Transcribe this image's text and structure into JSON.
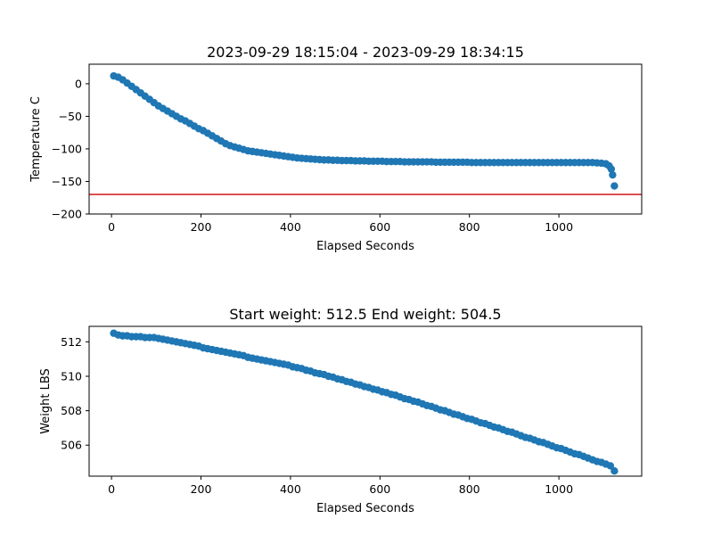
{
  "chart_data": [
    {
      "type": "scatter",
      "title": "2023-09-29 18:15:04 - 2023-09-29 18:34:15",
      "xlabel": "Elapsed Seconds",
      "ylabel": "Temperature C",
      "xlim": [
        -50,
        1185
      ],
      "ylim": [
        -200,
        30
      ],
      "xticks": [
        0,
        200,
        400,
        600,
        800,
        1000
      ],
      "yticks": [
        0,
        -50,
        -100,
        -150,
        -200
      ],
      "grid": false,
      "marker_color": "#1f77b4",
      "reference_line": {
        "y": -170,
        "color": "#d62728"
      },
      "series": [
        {
          "points": [
            [
              5,
              12
            ],
            [
              15,
              10
            ],
            [
              25,
              6
            ],
            [
              35,
              1
            ],
            [
              45,
              -4
            ],
            [
              55,
              -9
            ],
            [
              65,
              -14
            ],
            [
              75,
              -19
            ],
            [
              85,
              -24
            ],
            [
              95,
              -29
            ],
            [
              105,
              -34
            ],
            [
              115,
              -38
            ],
            [
              125,
              -42
            ],
            [
              135,
              -46
            ],
            [
              145,
              -50
            ],
            [
              155,
              -54
            ],
            [
              165,
              -57
            ],
            [
              175,
              -61
            ],
            [
              185,
              -65
            ],
            [
              195,
              -69
            ],
            [
              205,
              -72
            ],
            [
              215,
              -76
            ],
            [
              225,
              -80
            ],
            [
              235,
              -84
            ],
            [
              245,
              -88
            ],
            [
              255,
              -92
            ],
            [
              265,
              -95
            ],
            [
              275,
              -97
            ],
            [
              285,
              -99
            ],
            [
              295,
              -101
            ],
            [
              305,
              -103
            ],
            [
              315,
              -104
            ],
            [
              325,
              -105
            ],
            [
              335,
              -106
            ],
            [
              345,
              -107
            ],
            [
              355,
              -108
            ],
            [
              365,
              -109
            ],
            [
              375,
              -110
            ],
            [
              385,
              -111
            ],
            [
              395,
              -112
            ],
            [
              405,
              -113
            ],
            [
              415,
              -114
            ],
            [
              425,
              -114.5
            ],
            [
              435,
              -115
            ],
            [
              445,
              -115.5
            ],
            [
              455,
              -116
            ],
            [
              465,
              -116.5
            ],
            [
              475,
              -117
            ],
            [
              485,
              -117
            ],
            [
              495,
              -117.5
            ],
            [
              505,
              -117.5
            ],
            [
              515,
              -118
            ],
            [
              525,
              -118
            ],
            [
              535,
              -118
            ],
            [
              545,
              -118.5
            ],
            [
              555,
              -118.5
            ],
            [
              565,
              -118.5
            ],
            [
              575,
              -119
            ],
            [
              585,
              -119
            ],
            [
              595,
              -119
            ],
            [
              605,
              -119
            ],
            [
              615,
              -119.5
            ],
            [
              625,
              -119.5
            ],
            [
              635,
              -119.5
            ],
            [
              645,
              -119.5
            ],
            [
              655,
              -120
            ],
            [
              665,
              -120
            ],
            [
              675,
              -120
            ],
            [
              685,
              -120
            ],
            [
              695,
              -120
            ],
            [
              705,
              -120
            ],
            [
              715,
              -120
            ],
            [
              725,
              -120.5
            ],
            [
              735,
              -120.5
            ],
            [
              745,
              -120.5
            ],
            [
              755,
              -120.5
            ],
            [
              765,
              -120.5
            ],
            [
              775,
              -120.5
            ],
            [
              785,
              -120.5
            ],
            [
              795,
              -120.5
            ],
            [
              805,
              -121
            ],
            [
              815,
              -121
            ],
            [
              825,
              -121
            ],
            [
              835,
              -121
            ],
            [
              845,
              -121
            ],
            [
              855,
              -121
            ],
            [
              865,
              -121
            ],
            [
              875,
              -121
            ],
            [
              885,
              -121
            ],
            [
              895,
              -121
            ],
            [
              905,
              -121
            ],
            [
              915,
              -121
            ],
            [
              925,
              -121
            ],
            [
              935,
              -121
            ],
            [
              945,
              -121
            ],
            [
              955,
              -121
            ],
            [
              965,
              -121
            ],
            [
              975,
              -121
            ],
            [
              985,
              -121
            ],
            [
              995,
              -121
            ],
            [
              1005,
              -121
            ],
            [
              1015,
              -121
            ],
            [
              1025,
              -121
            ],
            [
              1035,
              -121
            ],
            [
              1045,
              -121
            ],
            [
              1055,
              -121
            ],
            [
              1065,
              -121
            ],
            [
              1075,
              -121
            ],
            [
              1085,
              -121.5
            ],
            [
              1095,
              -122
            ],
            [
              1105,
              -123
            ],
            [
              1112,
              -126
            ],
            [
              1117,
              -131
            ],
            [
              1120,
              -140
            ],
            [
              1124,
              -157
            ]
          ]
        }
      ]
    },
    {
      "type": "scatter",
      "title": "Start weight: 512.5 End weight: 504.5",
      "xlabel": "Elapsed Seconds",
      "ylabel": "Weight LBS",
      "xlim": [
        -50,
        1185
      ],
      "ylim": [
        504.2,
        512.9
      ],
      "xticks": [
        0,
        200,
        400,
        600,
        800,
        1000
      ],
      "yticks": [
        506,
        508,
        510,
        512
      ],
      "grid": false,
      "marker_color": "#1f77b4",
      "series": [
        {
          "points": [
            [
              5,
              512.5
            ],
            [
              15,
              512.4
            ],
            [
              25,
              512.35
            ],
            [
              35,
              512.35
            ],
            [
              45,
              512.3
            ],
            [
              55,
              512.3
            ],
            [
              65,
              512.3
            ],
            [
              75,
              512.25
            ],
            [
              85,
              512.25
            ],
            [
              95,
              512.25
            ],
            [
              105,
              512.2
            ],
            [
              115,
              512.15
            ],
            [
              125,
              512.1
            ],
            [
              135,
              512.05
            ],
            [
              145,
              512.0
            ],
            [
              155,
              511.95
            ],
            [
              165,
              511.9
            ],
            [
              175,
              511.85
            ],
            [
              185,
              511.8
            ],
            [
              195,
              511.75
            ],
            [
              205,
              511.65
            ],
            [
              215,
              511.6
            ],
            [
              225,
              511.55
            ],
            [
              235,
              511.5
            ],
            [
              245,
              511.45
            ],
            [
              255,
              511.4
            ],
            [
              265,
              511.35
            ],
            [
              275,
              511.3
            ],
            [
              285,
              511.25
            ],
            [
              295,
              511.2
            ],
            [
              305,
              511.1
            ],
            [
              315,
              511.05
            ],
            [
              325,
              511.0
            ],
            [
              335,
              510.95
            ],
            [
              345,
              510.9
            ],
            [
              355,
              510.85
            ],
            [
              365,
              510.8
            ],
            [
              375,
              510.75
            ],
            [
              385,
              510.7
            ],
            [
              395,
              510.65
            ],
            [
              405,
              510.55
            ],
            [
              415,
              510.5
            ],
            [
              425,
              510.45
            ],
            [
              435,
              510.35
            ],
            [
              445,
              510.3
            ],
            [
              455,
              510.2
            ],
            [
              465,
              510.15
            ],
            [
              475,
              510.1
            ],
            [
              485,
              510.0
            ],
            [
              495,
              509.95
            ],
            [
              505,
              509.85
            ],
            [
              515,
              509.8
            ],
            [
              525,
              509.7
            ],
            [
              535,
              509.65
            ],
            [
              545,
              509.55
            ],
            [
              555,
              509.5
            ],
            [
              565,
              509.4
            ],
            [
              575,
              509.35
            ],
            [
              585,
              509.25
            ],
            [
              595,
              509.2
            ],
            [
              605,
              509.1
            ],
            [
              615,
              509.05
            ],
            [
              625,
              508.95
            ],
            [
              635,
              508.9
            ],
            [
              645,
              508.8
            ],
            [
              655,
              508.7
            ],
            [
              665,
              508.65
            ],
            [
              675,
              508.55
            ],
            [
              685,
              508.5
            ],
            [
              695,
              508.4
            ],
            [
              705,
              508.3
            ],
            [
              715,
              508.25
            ],
            [
              725,
              508.15
            ],
            [
              735,
              508.05
            ],
            [
              745,
              508.0
            ],
            [
              755,
              507.9
            ],
            [
              765,
              507.8
            ],
            [
              775,
              507.75
            ],
            [
              785,
              507.65
            ],
            [
              795,
              507.55
            ],
            [
              805,
              507.5
            ],
            [
              815,
              507.4
            ],
            [
              825,
              507.3
            ],
            [
              835,
              507.25
            ],
            [
              845,
              507.15
            ],
            [
              855,
              507.05
            ],
            [
              865,
              507.0
            ],
            [
              875,
              506.9
            ],
            [
              885,
              506.8
            ],
            [
              895,
              506.75
            ],
            [
              905,
              506.65
            ],
            [
              915,
              506.55
            ],
            [
              925,
              506.45
            ],
            [
              935,
              506.4
            ],
            [
              945,
              506.3
            ],
            [
              955,
              506.2
            ],
            [
              965,
              506.15
            ],
            [
              975,
              506.05
            ],
            [
              985,
              505.95
            ],
            [
              995,
              505.85
            ],
            [
              1005,
              505.8
            ],
            [
              1015,
              505.7
            ],
            [
              1025,
              505.6
            ],
            [
              1035,
              505.5
            ],
            [
              1045,
              505.45
            ],
            [
              1055,
              505.35
            ],
            [
              1065,
              505.25
            ],
            [
              1075,
              505.15
            ],
            [
              1085,
              505.05
            ],
            [
              1095,
              505.0
            ],
            [
              1105,
              504.9
            ],
            [
              1115,
              504.8
            ],
            [
              1124,
              504.5
            ]
          ]
        }
      ]
    }
  ]
}
